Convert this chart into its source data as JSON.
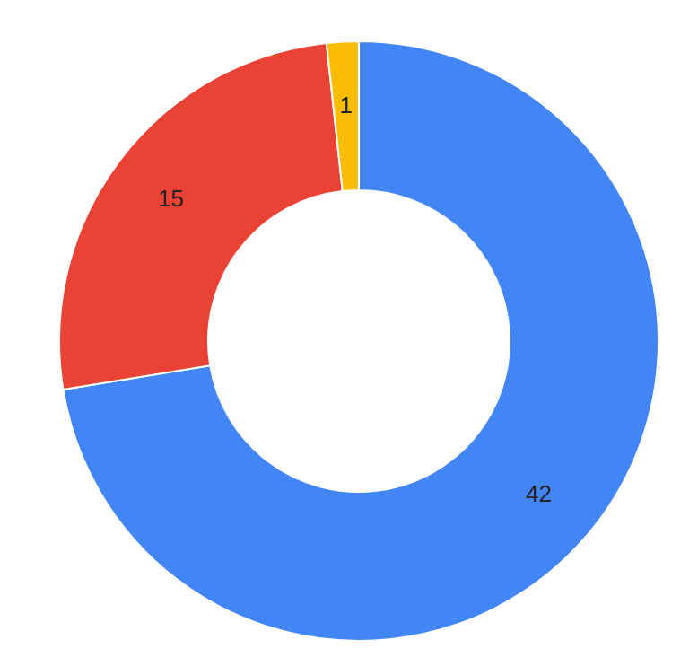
{
  "chart_data": {
    "type": "donut",
    "categories": [
      null,
      null,
      null
    ],
    "values": [
      42,
      15,
      1
    ],
    "colors": [
      "#4285f4",
      "#ea4335",
      "#fbbc04"
    ],
    "data_labels": true
  }
}
